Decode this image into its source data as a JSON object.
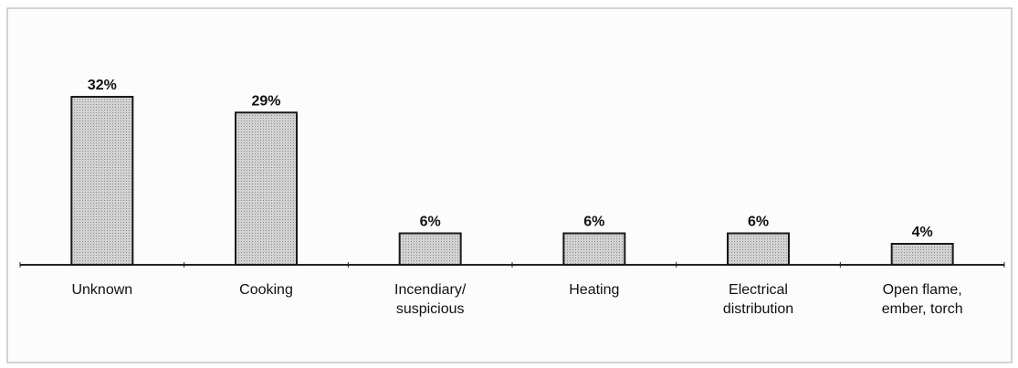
{
  "chart_data": {
    "type": "bar",
    "categories": [
      [
        "Unknown"
      ],
      [
        "Cooking"
      ],
      [
        "Incendiary/",
        "suspicious"
      ],
      [
        "Heating"
      ],
      [
        "Electrical",
        "distribution"
      ],
      [
        "Open flame,",
        "ember, torch"
      ]
    ],
    "values": [
      32,
      29,
      6,
      6,
      6,
      4
    ],
    "value_labels": [
      "32%",
      "29%",
      "6%",
      "6%",
      "6%",
      "4%"
    ],
    "color": "#c4c4c4"
  }
}
